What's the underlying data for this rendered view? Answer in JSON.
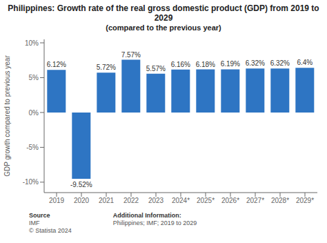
{
  "chart_data": {
    "type": "bar",
    "title": "Philippines: Growth rate of the real gross domestic product (GDP) from 2019 to 2029",
    "subtitle": "(compared to the previous year)",
    "categories": [
      "2019",
      "2020",
      "2021",
      "2022",
      "2023",
      "2024*",
      "2025*",
      "2026*",
      "2027*",
      "2028*",
      "2029*"
    ],
    "values": [
      6.12,
      -9.52,
      5.72,
      7.57,
      5.57,
      6.16,
      6.18,
      6.19,
      6.32,
      6.32,
      6.4
    ],
    "value_labels": [
      "6.12%",
      "-9.52%",
      "5.72%",
      "7.57%",
      "5.57%",
      "6.16%",
      "6.18%",
      "6.19%",
      "6.32%",
      "6.32%",
      "6.4%"
    ],
    "data_labels": true,
    "color": "#2e75c3",
    "ylabel": "GDP growth compared to previous year",
    "ylim": [
      -11.5,
      10.5
    ],
    "yticks": [
      {
        "value": -10,
        "label": "-10%"
      },
      {
        "value": -5,
        "label": "-5%"
      },
      {
        "value": 0,
        "label": "0%"
      },
      {
        "value": 5,
        "label": "5%"
      },
      {
        "value": 10,
        "label": "10%"
      }
    ],
    "grid": false,
    "annotations": [
      [
        "Source",
        "IMF",
        "© Statista 2024"
      ],
      [
        "Additional Information:",
        "Philippines; IMF; 2019 to 2029"
      ]
    ]
  }
}
